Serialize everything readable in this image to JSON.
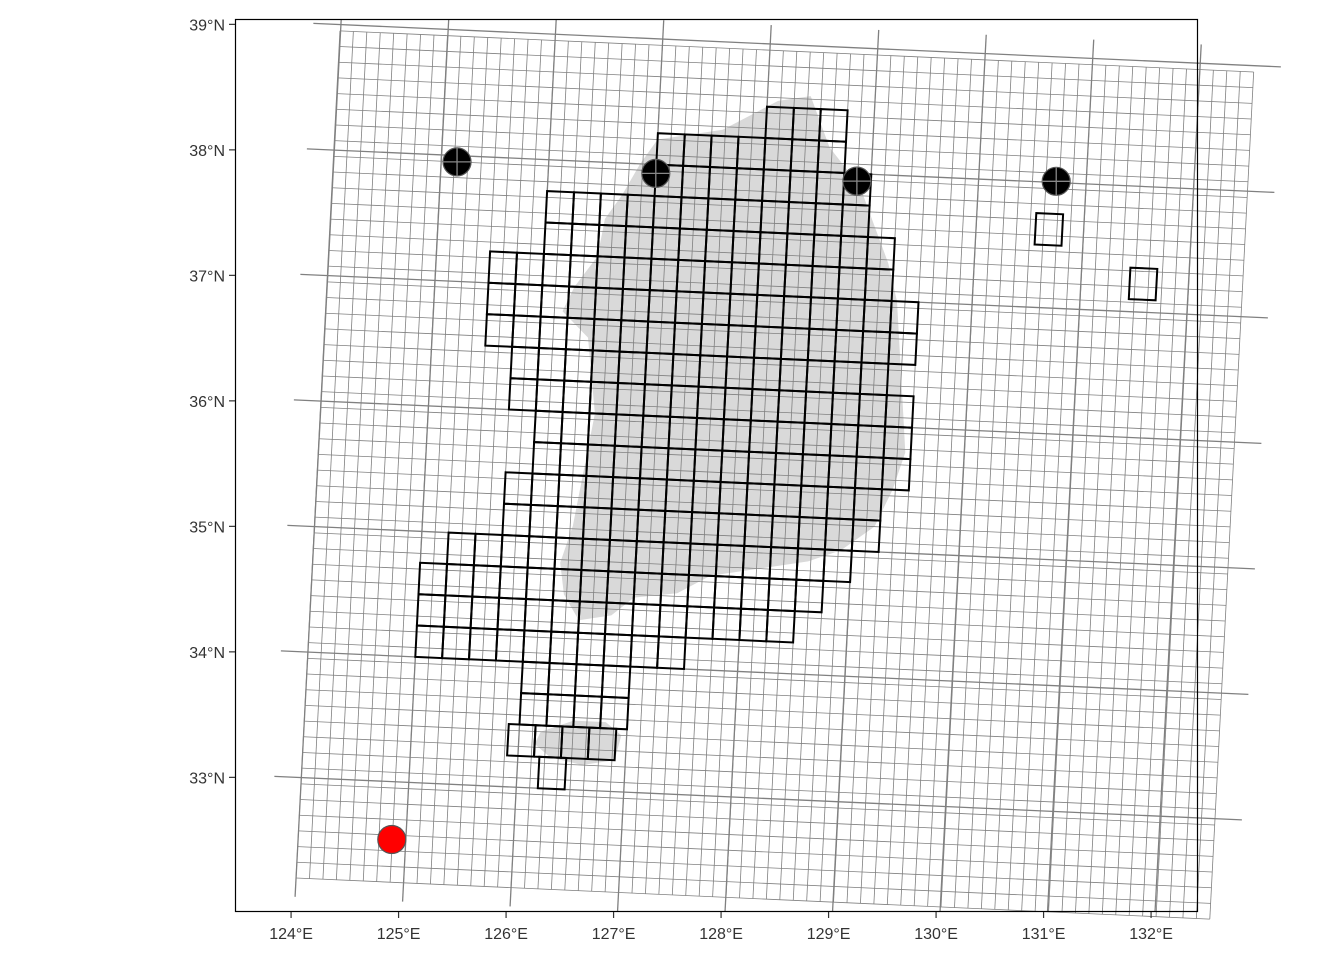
{
  "axes": {
    "x_ticks": [
      {
        "value": 124,
        "label": "124°E"
      },
      {
        "value": 125,
        "label": "125°E"
      },
      {
        "value": 126,
        "label": "126°E"
      },
      {
        "value": 127,
        "label": "127°E"
      },
      {
        "value": 128,
        "label": "128°E"
      },
      {
        "value": 129,
        "label": "129°E"
      },
      {
        "value": 130,
        "label": "130°E"
      },
      {
        "value": 131,
        "label": "131°E"
      },
      {
        "value": 132,
        "label": "132°E"
      }
    ],
    "y_ticks": [
      {
        "value": 39,
        "label": "39°N"
      },
      {
        "value": 38,
        "label": "38°N"
      },
      {
        "value": 37,
        "label": "37°N"
      },
      {
        "value": 36,
        "label": "36°N"
      },
      {
        "value": 35,
        "label": "35°N"
      },
      {
        "value": 34,
        "label": "34°N"
      },
      {
        "value": 33,
        "label": "33°N"
      }
    ],
    "xlim": [
      123.75,
      132.75
    ],
    "ylim": [
      32.05,
      39.15
    ]
  },
  "colors": {
    "grid": "#808080",
    "land": "#d9d9d9",
    "highlighted_cell_outline": "#000000",
    "point_black": "#000000",
    "point_red": "#ff0000",
    "panel_border": "#000000"
  },
  "grid_cell_size_deg": {
    "lon": 0.25,
    "lat": 0.25
  },
  "points": [
    {
      "lon": 125.15,
      "lat": 37.95,
      "color": "black",
      "crosshair": true
    },
    {
      "lon": 127.0,
      "lat": 37.93,
      "color": "black",
      "crosshair": true
    },
    {
      "lon": 128.87,
      "lat": 37.94,
      "color": "black",
      "crosshair": true
    },
    {
      "lon": 130.72,
      "lat": 38.01,
      "color": "black",
      "crosshair": true
    },
    {
      "lon": 124.87,
      "lat": 32.54,
      "color": "red",
      "crosshair": false
    }
  ],
  "highlighted_cells_rows": [
    {
      "lat": 38.25,
      "lon_from": 128.0,
      "lon_to": 128.75
    },
    {
      "lat": 38.0,
      "lon_from": 127.0,
      "lon_to": 128.75
    },
    {
      "lat": 37.75,
      "lon_from": 127.0,
      "lon_to": 129.0
    },
    {
      "lat": 37.5,
      "lon_from": 126.0,
      "lon_to": 129.0
    },
    {
      "lat": 37.25,
      "lon_from": 126.0,
      "lon_to": 129.25
    },
    {
      "lat": 37.0,
      "lon_from": 125.5,
      "lon_to": 129.25
    },
    {
      "lat": 36.75,
      "lon_from": 125.5,
      "lon_to": 129.5
    },
    {
      "lat": 36.5,
      "lon_from": 125.5,
      "lon_to": 129.5
    },
    {
      "lat": 36.25,
      "lon_from": 125.75,
      "lon_to": 129.25
    },
    {
      "lat": 36.0,
      "lon_from": 125.75,
      "lon_to": 129.5
    },
    {
      "lat": 35.75,
      "lon_from": 126.0,
      "lon_to": 129.5
    },
    {
      "lat": 35.5,
      "lon_from": 126.0,
      "lon_to": 129.5
    },
    {
      "lat": 35.25,
      "lon_from": 125.75,
      "lon_to": 129.25
    },
    {
      "lat": 35.0,
      "lon_from": 125.75,
      "lon_to": 129.25
    },
    {
      "lat": 34.75,
      "lon_from": 125.25,
      "lon_to": 129.0
    },
    {
      "lat": 34.5,
      "lon_from": 125.0,
      "lon_to": 128.75
    },
    {
      "lat": 34.25,
      "lon_from": 125.0,
      "lon_to": 128.5
    },
    {
      "lat": 34.0,
      "lon_from": 125.0,
      "lon_to": 127.5
    },
    {
      "lat": 33.75,
      "lon_from": 126.0,
      "lon_to": 127.0
    },
    {
      "lat": 33.5,
      "lon_from": 126.0,
      "lon_to": 127.0
    },
    {
      "lat": 33.25,
      "lon_from": 125.9,
      "lon_to": 126.9
    },
    {
      "lat": 33.0,
      "lon_from": 126.2,
      "lon_to": 126.45
    },
    {
      "lat": 37.5,
      "lon_from": 130.55,
      "lon_to": 130.8
    },
    {
      "lat": 37.1,
      "lon_from": 131.45,
      "lon_to": 131.7
    }
  ],
  "land_polygons": [
    [
      [
        127.0,
        38.2
      ],
      [
        127.6,
        38.3
      ],
      [
        128.1,
        38.55
      ],
      [
        128.4,
        38.6
      ],
      [
        128.6,
        38.2
      ],
      [
        128.9,
        37.9
      ],
      [
        129.05,
        37.6
      ],
      [
        129.2,
        37.3
      ],
      [
        129.3,
        37.0
      ],
      [
        129.35,
        36.6
      ],
      [
        129.4,
        36.2
      ],
      [
        129.45,
        35.8
      ],
      [
        129.35,
        35.5
      ],
      [
        129.2,
        35.2
      ],
      [
        128.9,
        35.0
      ],
      [
        128.6,
        34.9
      ],
      [
        128.3,
        34.85
      ],
      [
        128.0,
        34.8
      ],
      [
        127.7,
        34.75
      ],
      [
        127.4,
        34.6
      ],
      [
        127.0,
        34.55
      ],
      [
        126.8,
        34.4
      ],
      [
        126.5,
        34.35
      ],
      [
        126.35,
        34.55
      ],
      [
        126.3,
        34.8
      ],
      [
        126.4,
        35.1
      ],
      [
        126.45,
        35.4
      ],
      [
        126.5,
        35.7
      ],
      [
        126.55,
        36.0
      ],
      [
        126.5,
        36.3
      ],
      [
        126.45,
        36.6
      ],
      [
        126.2,
        36.8
      ],
      [
        126.3,
        37.0
      ],
      [
        126.5,
        37.25
      ],
      [
        126.55,
        37.55
      ],
      [
        126.7,
        37.75
      ],
      [
        126.85,
        38.0
      ]
    ],
    [
      [
        126.2,
        33.45
      ],
      [
        126.5,
        33.55
      ],
      [
        126.8,
        33.55
      ],
      [
        126.95,
        33.45
      ],
      [
        126.9,
        33.25
      ],
      [
        126.6,
        33.2
      ],
      [
        126.3,
        33.25
      ],
      [
        126.15,
        33.35
      ]
    ]
  ]
}
